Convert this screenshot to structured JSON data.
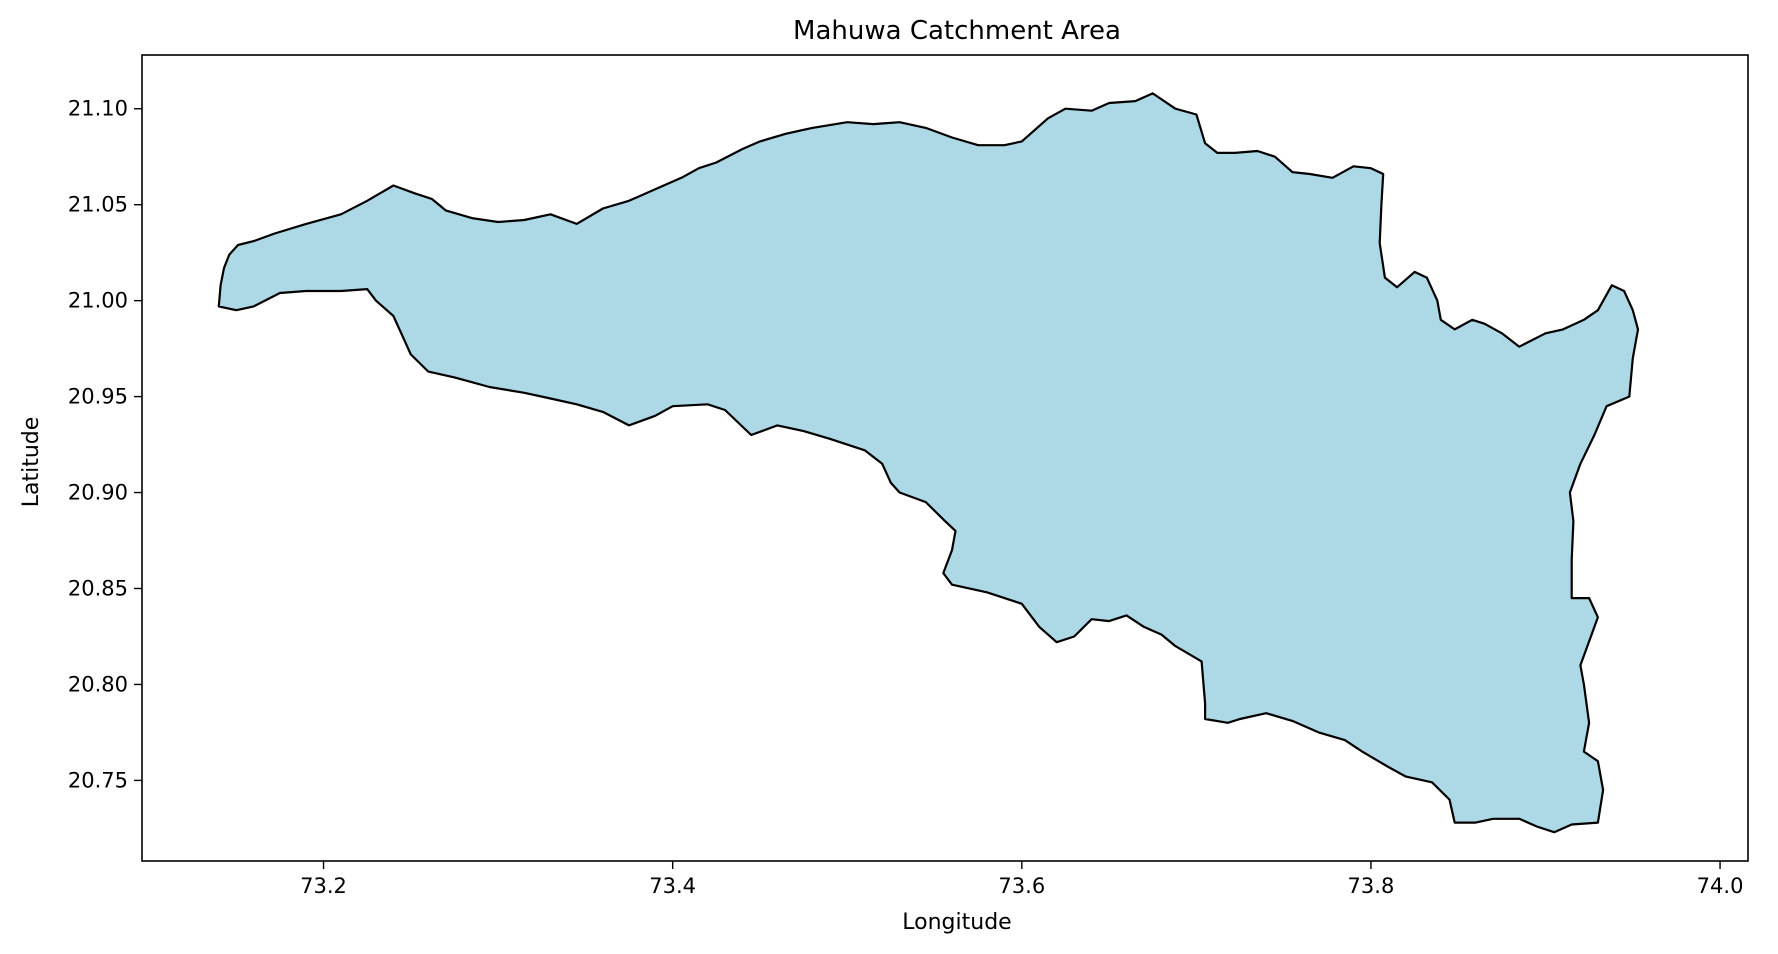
{
  "chart_data": {
    "type": "map",
    "title": "Mahuwa Catchment Area",
    "xlabel": "Longitude",
    "ylabel": "Latitude",
    "xlim": [
      73.096,
      74.016
    ],
    "ylim": [
      20.708,
      21.128
    ],
    "xticks": [
      73.2,
      73.4,
      73.6,
      73.8,
      74.0
    ],
    "xtick_labels": [
      "73.2",
      "73.4",
      "73.6",
      "73.8",
      "74.0"
    ],
    "yticks": [
      20.75,
      20.8,
      20.85,
      20.9,
      20.95,
      21.0,
      21.05,
      21.1
    ],
    "ytick_labels": [
      "20.75",
      "20.80",
      "20.85",
      "20.90",
      "20.95",
      "21.00",
      "21.05",
      "21.10"
    ],
    "grid": false,
    "colors": {
      "fill": "#add8e6",
      "edge": "#000000"
    },
    "series": [
      {
        "polygon": [
          [
            73.14,
            20.997
          ],
          [
            73.141,
            21.008
          ],
          [
            73.143,
            21.017
          ],
          [
            73.146,
            21.024
          ],
          [
            73.151,
            21.029
          ],
          [
            73.16,
            21.031
          ],
          [
            73.172,
            21.035
          ],
          [
            73.19,
            21.04
          ],
          [
            73.21,
            21.045
          ],
          [
            73.225,
            21.052
          ],
          [
            73.24,
            21.06
          ],
          [
            73.252,
            21.056
          ],
          [
            73.262,
            21.053
          ],
          [
            73.27,
            21.047
          ],
          [
            73.285,
            21.043
          ],
          [
            73.3,
            21.041
          ],
          [
            73.315,
            21.042
          ],
          [
            73.33,
            21.045
          ],
          [
            73.345,
            21.04
          ],
          [
            73.36,
            21.048
          ],
          [
            73.375,
            21.052
          ],
          [
            73.39,
            21.058
          ],
          [
            73.405,
            21.064
          ],
          [
            73.415,
            21.069
          ],
          [
            73.425,
            21.072
          ],
          [
            73.44,
            21.079
          ],
          [
            73.45,
            21.083
          ],
          [
            73.465,
            21.087
          ],
          [
            73.48,
            21.09
          ],
          [
            73.5,
            21.093
          ],
          [
            73.515,
            21.092
          ],
          [
            73.53,
            21.093
          ],
          [
            73.545,
            21.09
          ],
          [
            73.56,
            21.085
          ],
          [
            73.575,
            21.081
          ],
          [
            73.59,
            21.081
          ],
          [
            73.6,
            21.083
          ],
          [
            73.615,
            21.095
          ],
          [
            73.625,
            21.1
          ],
          [
            73.64,
            21.099
          ],
          [
            73.65,
            21.103
          ],
          [
            73.665,
            21.104
          ],
          [
            73.675,
            21.108
          ],
          [
            73.688,
            21.1
          ],
          [
            73.7,
            21.097
          ],
          [
            73.705,
            21.082
          ],
          [
            73.712,
            21.077
          ],
          [
            73.722,
            21.077
          ],
          [
            73.735,
            21.078
          ],
          [
            73.745,
            21.075
          ],
          [
            73.755,
            21.067
          ],
          [
            73.765,
            21.066
          ],
          [
            73.778,
            21.064
          ],
          [
            73.79,
            21.07
          ],
          [
            73.8,
            21.069
          ],
          [
            73.807,
            21.066
          ],
          [
            73.806,
            21.05
          ],
          [
            73.805,
            21.03
          ],
          [
            73.808,
            21.012
          ],
          [
            73.815,
            21.007
          ],
          [
            73.825,
            21.015
          ],
          [
            73.832,
            21.012
          ],
          [
            73.838,
            21.0
          ],
          [
            73.84,
            20.99
          ],
          [
            73.848,
            20.985
          ],
          [
            73.858,
            20.99
          ],
          [
            73.865,
            20.988
          ],
          [
            73.875,
            20.983
          ],
          [
            73.885,
            20.976
          ],
          [
            73.9,
            20.983
          ],
          [
            73.91,
            20.985
          ],
          [
            73.922,
            20.99
          ],
          [
            73.93,
            20.995
          ],
          [
            73.938,
            21.008
          ],
          [
            73.945,
            21.005
          ],
          [
            73.95,
            20.995
          ],
          [
            73.953,
            20.985
          ],
          [
            73.95,
            20.97
          ],
          [
            73.948,
            20.95
          ],
          [
            73.935,
            20.945
          ],
          [
            73.928,
            20.93
          ],
          [
            73.92,
            20.915
          ],
          [
            73.914,
            20.9
          ],
          [
            73.916,
            20.885
          ],
          [
            73.915,
            20.865
          ],
          [
            73.915,
            20.845
          ],
          [
            73.925,
            20.845
          ],
          [
            73.93,
            20.835
          ],
          [
            73.92,
            20.81
          ],
          [
            73.922,
            20.8
          ],
          [
            73.925,
            20.78
          ],
          [
            73.922,
            20.765
          ],
          [
            73.93,
            20.76
          ],
          [
            73.933,
            20.745
          ],
          [
            73.93,
            20.728
          ],
          [
            73.915,
            20.727
          ],
          [
            73.905,
            20.723
          ],
          [
            73.895,
            20.726
          ],
          [
            73.885,
            20.73
          ],
          [
            73.87,
            20.73
          ],
          [
            73.86,
            20.728
          ],
          [
            73.848,
            20.728
          ],
          [
            73.845,
            20.74
          ],
          [
            73.835,
            20.749
          ],
          [
            73.82,
            20.752
          ],
          [
            73.81,
            20.757
          ],
          [
            73.795,
            20.765
          ],
          [
            73.785,
            20.771
          ],
          [
            73.77,
            20.775
          ],
          [
            73.755,
            20.781
          ],
          [
            73.74,
            20.785
          ],
          [
            73.725,
            20.782
          ],
          [
            73.718,
            20.78
          ],
          [
            73.705,
            20.782
          ],
          [
            73.705,
            20.79
          ],
          [
            73.703,
            20.812
          ],
          [
            73.688,
            20.82
          ],
          [
            73.68,
            20.826
          ],
          [
            73.67,
            20.83
          ],
          [
            73.66,
            20.836
          ],
          [
            73.65,
            20.833
          ],
          [
            73.64,
            20.834
          ],
          [
            73.63,
            20.825
          ],
          [
            73.62,
            20.822
          ],
          [
            73.61,
            20.83
          ],
          [
            73.6,
            20.842
          ],
          [
            73.58,
            20.848
          ],
          [
            73.56,
            20.852
          ],
          [
            73.555,
            20.858
          ],
          [
            73.56,
            20.87
          ],
          [
            73.562,
            20.88
          ],
          [
            73.555,
            20.886
          ],
          [
            73.545,
            20.895
          ],
          [
            73.53,
            20.9
          ],
          [
            73.525,
            20.905
          ],
          [
            73.52,
            20.915
          ],
          [
            73.51,
            20.922
          ],
          [
            73.49,
            20.928
          ],
          [
            73.475,
            20.932
          ],
          [
            73.46,
            20.935
          ],
          [
            73.445,
            20.93
          ],
          [
            73.43,
            20.943
          ],
          [
            73.42,
            20.946
          ],
          [
            73.4,
            20.945
          ],
          [
            73.39,
            20.94
          ],
          [
            73.375,
            20.935
          ],
          [
            73.36,
            20.942
          ],
          [
            73.345,
            20.946
          ],
          [
            73.33,
            20.949
          ],
          [
            73.315,
            20.952
          ],
          [
            73.295,
            20.955
          ],
          [
            73.275,
            20.96
          ],
          [
            73.26,
            20.963
          ],
          [
            73.25,
            20.972
          ],
          [
            73.245,
            20.982
          ],
          [
            73.24,
            20.992
          ],
          [
            73.23,
            21.0
          ],
          [
            73.225,
            21.006
          ],
          [
            73.21,
            21.005
          ],
          [
            73.19,
            21.005
          ],
          [
            73.175,
            21.004
          ],
          [
            73.16,
            20.997
          ],
          [
            73.15,
            20.995
          ],
          [
            73.14,
            20.997
          ]
        ]
      }
    ]
  }
}
